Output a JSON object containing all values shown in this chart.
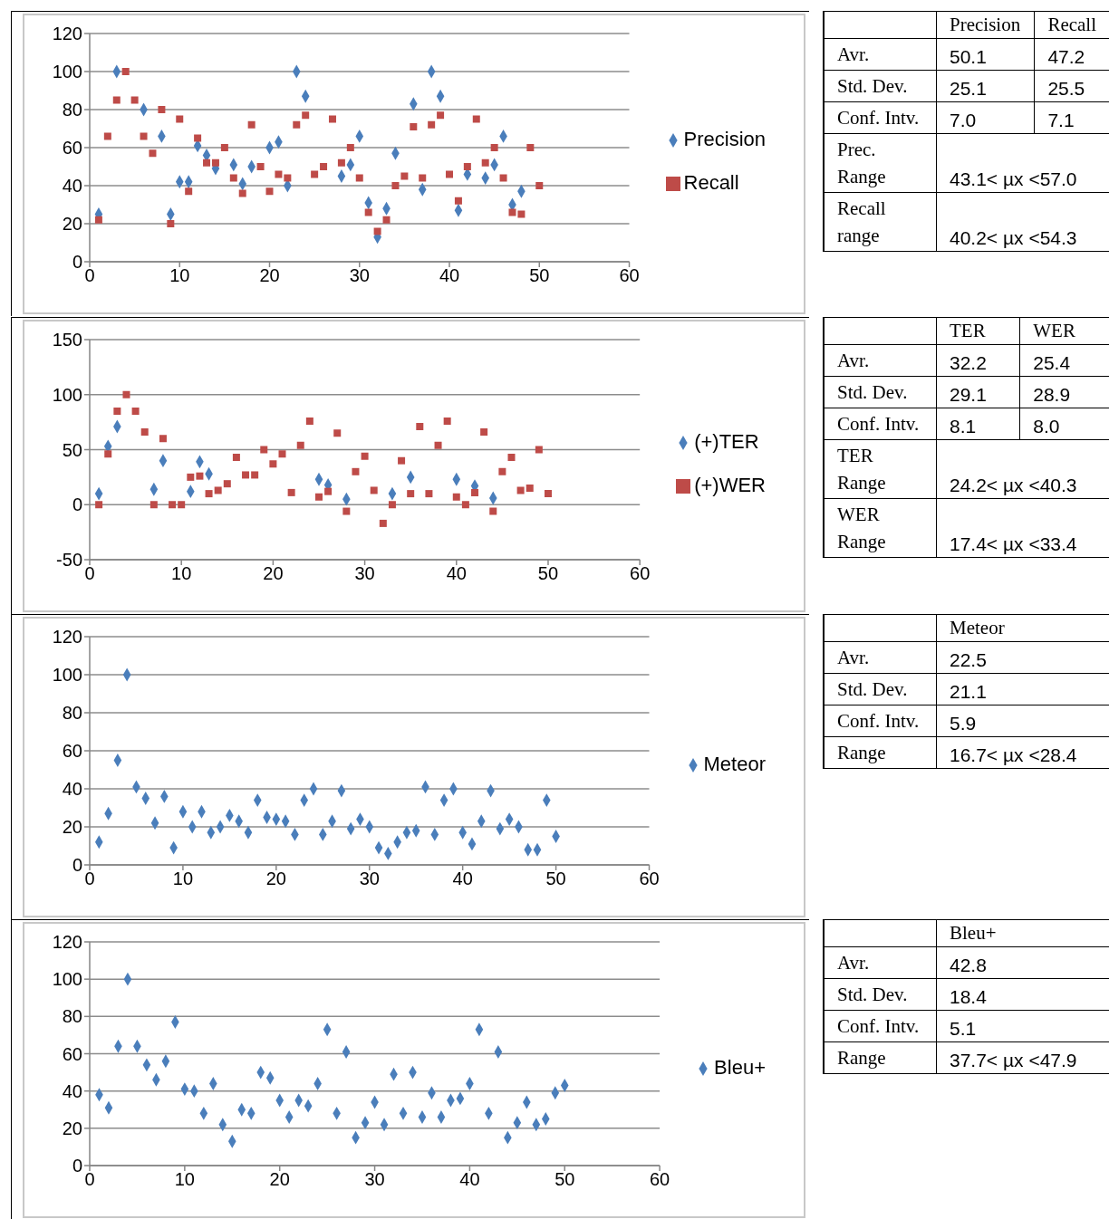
{
  "chart_data": [
    {
      "type": "scatter",
      "x": [
        1,
        2,
        3,
        4,
        5,
        6,
        7,
        8,
        9,
        10,
        11,
        12,
        13,
        14,
        15,
        16,
        17,
        18,
        19,
        20,
        21,
        22,
        23,
        24,
        25,
        26,
        27,
        28,
        29,
        30,
        31,
        32,
        33,
        34,
        35,
        36,
        37,
        38,
        39,
        40,
        41,
        42,
        43,
        44,
        45,
        46,
        47,
        48,
        49,
        50
      ],
      "xlim": [
        0,
        60
      ],
      "xticks": [
        0,
        10,
        20,
        30,
        40,
        50,
        60
      ],
      "ylim": [
        0,
        120
      ],
      "yticks": [
        0,
        20,
        40,
        60,
        80,
        100,
        120
      ],
      "grid": "y",
      "legend": "right",
      "series": [
        {
          "name": "Precision",
          "color": "#4a7ebb",
          "marker": "diamond",
          "values": [
            25,
            null,
            100,
            null,
            null,
            80,
            null,
            66,
            25,
            42,
            42,
            61,
            56,
            49,
            null,
            51,
            41,
            50,
            null,
            60,
            63,
            40,
            100,
            87,
            null,
            null,
            null,
            45,
            51,
            66,
            31,
            13,
            28,
            57,
            null,
            83,
            38,
            100,
            87,
            null,
            27,
            46,
            null,
            44,
            51,
            66,
            30,
            37,
            null,
            null
          ]
        },
        {
          "name": "Recall",
          "color": "#be4b48",
          "marker": "square",
          "values": [
            22,
            66,
            85,
            100,
            85,
            66,
            57,
            80,
            20,
            75,
            37,
            65,
            52,
            52,
            60,
            44,
            36,
            72,
            50,
            37,
            46,
            44,
            72,
            77,
            46,
            50,
            75,
            52,
            60,
            44,
            26,
            16,
            22,
            40,
            45,
            71,
            44,
            72,
            77,
            46,
            32,
            50,
            75,
            52,
            60,
            44,
            26,
            25,
            60,
            40
          ]
        }
      ]
    },
    {
      "type": "other",
      "categories": [
        "Precision",
        "Recall"
      ],
      "y_categories": [
        "Avr.",
        "Std. Dev.",
        "Conf. Intv.",
        "Prec. Range",
        "Recall range"
      ],
      "cell_labels": [
        [
          "50.1",
          "47.2"
        ],
        [
          "25.1",
          "25.5"
        ],
        [
          "7.0",
          "7.1"
        ],
        [
          "43.1< µx <57.0"
        ],
        [
          "40.2< µx <54.3"
        ]
      ]
    },
    {
      "type": "scatter",
      "x": [
        1,
        2,
        3,
        4,
        5,
        6,
        7,
        8,
        9,
        10,
        11,
        12,
        13,
        14,
        15,
        16,
        17,
        18,
        19,
        20,
        21,
        22,
        23,
        24,
        25,
        26,
        27,
        28,
        29,
        30,
        31,
        32,
        33,
        34,
        35,
        36,
        37,
        38,
        39,
        40,
        41,
        42,
        43,
        44,
        45,
        46,
        47,
        48,
        49,
        50
      ],
      "xlim": [
        0,
        60
      ],
      "xticks": [
        0,
        10,
        20,
        30,
        40,
        50,
        60
      ],
      "ylim": [
        -50,
        150
      ],
      "yticks": [
        -50,
        0,
        50,
        100,
        150
      ],
      "grid": "y",
      "legend": "right",
      "series": [
        {
          "name": "(+)TER",
          "color": "#4a7ebb",
          "marker": "diamond",
          "values": [
            10,
            53,
            71,
            null,
            null,
            null,
            14,
            40,
            null,
            null,
            12,
            39,
            28,
            null,
            null,
            null,
            null,
            null,
            null,
            null,
            null,
            null,
            null,
            null,
            23,
            18,
            null,
            5,
            null,
            null,
            null,
            null,
            10,
            null,
            25,
            null,
            null,
            null,
            null,
            23,
            null,
            17,
            null,
            6,
            null,
            null,
            null,
            null,
            null,
            null
          ]
        },
        {
          "name": "(+)WER",
          "color": "#be4b48",
          "marker": "square",
          "values": [
            0,
            46,
            85,
            100,
            85,
            66,
            0,
            60,
            0,
            0,
            25,
            26,
            10,
            13,
            19,
            43,
            27,
            27,
            50,
            37,
            46,
            11,
            54,
            76,
            7,
            12,
            65,
            -6,
            30,
            44,
            13,
            -17,
            0,
            40,
            10,
            71,
            10,
            54,
            76,
            7,
            0,
            11,
            66,
            -6,
            30,
            43,
            13,
            15,
            50,
            10
          ]
        }
      ]
    },
    {
      "type": "other",
      "categories": [
        "TER",
        "WER"
      ],
      "y_categories": [
        "Avr.",
        "Std. Dev.",
        "Conf. Intv.",
        "TER Range",
        "WER Range"
      ],
      "cell_labels": [
        [
          "32.2",
          "25.4"
        ],
        [
          "29.1",
          "28.9"
        ],
        [
          "8.1",
          "8.0"
        ],
        [
          "24.2< µx <40.3"
        ],
        [
          "17.4< µx <33.4"
        ]
      ]
    },
    {
      "type": "scatter",
      "x": [
        1,
        2,
        3,
        4,
        5,
        6,
        7,
        8,
        9,
        10,
        11,
        12,
        13,
        14,
        15,
        16,
        17,
        18,
        19,
        20,
        21,
        22,
        23,
        24,
        25,
        26,
        27,
        28,
        29,
        30,
        31,
        32,
        33,
        34,
        35,
        36,
        37,
        38,
        39,
        40,
        41,
        42,
        43,
        44,
        45,
        46,
        47,
        48,
        49,
        50
      ],
      "xlim": [
        0,
        60
      ],
      "xticks": [
        0,
        10,
        20,
        30,
        40,
        50,
        60
      ],
      "ylim": [
        0,
        120
      ],
      "yticks": [
        0,
        20,
        40,
        60,
        80,
        100,
        120
      ],
      "grid": "y",
      "legend": "right",
      "series": [
        {
          "name": "Meteor",
          "color": "#4a7ebb",
          "marker": "diamond",
          "values": [
            12,
            27,
            55,
            100,
            41,
            35,
            22,
            36,
            9,
            28,
            20,
            28,
            17,
            20,
            26,
            23,
            17,
            34,
            25,
            24,
            23,
            16,
            34,
            40,
            16,
            23,
            39,
            19,
            24,
            20,
            9,
            6,
            12,
            17,
            18,
            41,
            16,
            34,
            40,
            17,
            11,
            23,
            39,
            19,
            24,
            20,
            8,
            8,
            34,
            15
          ]
        }
      ]
    },
    {
      "type": "other",
      "categories": [
        "Meteor"
      ],
      "y_categories": [
        "Avr.",
        "Std. Dev.",
        "Conf. Intv.",
        "Range"
      ],
      "cell_labels": [
        [
          "22.5"
        ],
        [
          "21.1"
        ],
        [
          "5.9"
        ],
        [
          "16.7< µx <28.4"
        ]
      ]
    },
    {
      "type": "scatter",
      "x": [
        1,
        2,
        3,
        4,
        5,
        6,
        7,
        8,
        9,
        10,
        11,
        12,
        13,
        14,
        15,
        16,
        17,
        18,
        19,
        20,
        21,
        22,
        23,
        24,
        25,
        26,
        27,
        28,
        29,
        30,
        31,
        32,
        33,
        34,
        35,
        36,
        37,
        38,
        39,
        40,
        41,
        42,
        43,
        44,
        45,
        46,
        47,
        48,
        49,
        50
      ],
      "xlim": [
        0,
        60
      ],
      "xticks": [
        0,
        10,
        20,
        30,
        40,
        50,
        60
      ],
      "ylim": [
        0,
        120
      ],
      "yticks": [
        0,
        20,
        40,
        60,
        80,
        100,
        120
      ],
      "grid": "y",
      "legend": "right",
      "series": [
        {
          "name": "Bleu+",
          "color": "#4a7ebb",
          "marker": "diamond",
          "values": [
            38,
            31,
            64,
            100,
            64,
            54,
            46,
            56,
            77,
            41,
            40,
            28,
            44,
            22,
            13,
            30,
            28,
            50,
            47,
            35,
            26,
            35,
            32,
            44,
            73,
            28,
            61,
            15,
            23,
            34,
            22,
            49,
            28,
            50,
            26,
            39,
            26,
            35,
            36,
            44,
            73,
            28,
            61,
            15,
            23,
            34,
            22,
            25,
            39,
            43
          ]
        }
      ]
    },
    {
      "type": "other",
      "categories": [
        "Bleu+"
      ],
      "y_categories": [
        "Avr.",
        "Std. Dev.",
        "Conf. Intv.",
        "Range"
      ],
      "cell_labels": [
        [
          "42.8"
        ],
        [
          "18.4"
        ],
        [
          "5.1"
        ],
        [
          "37.7< µx <47.9"
        ]
      ]
    }
  ]
}
